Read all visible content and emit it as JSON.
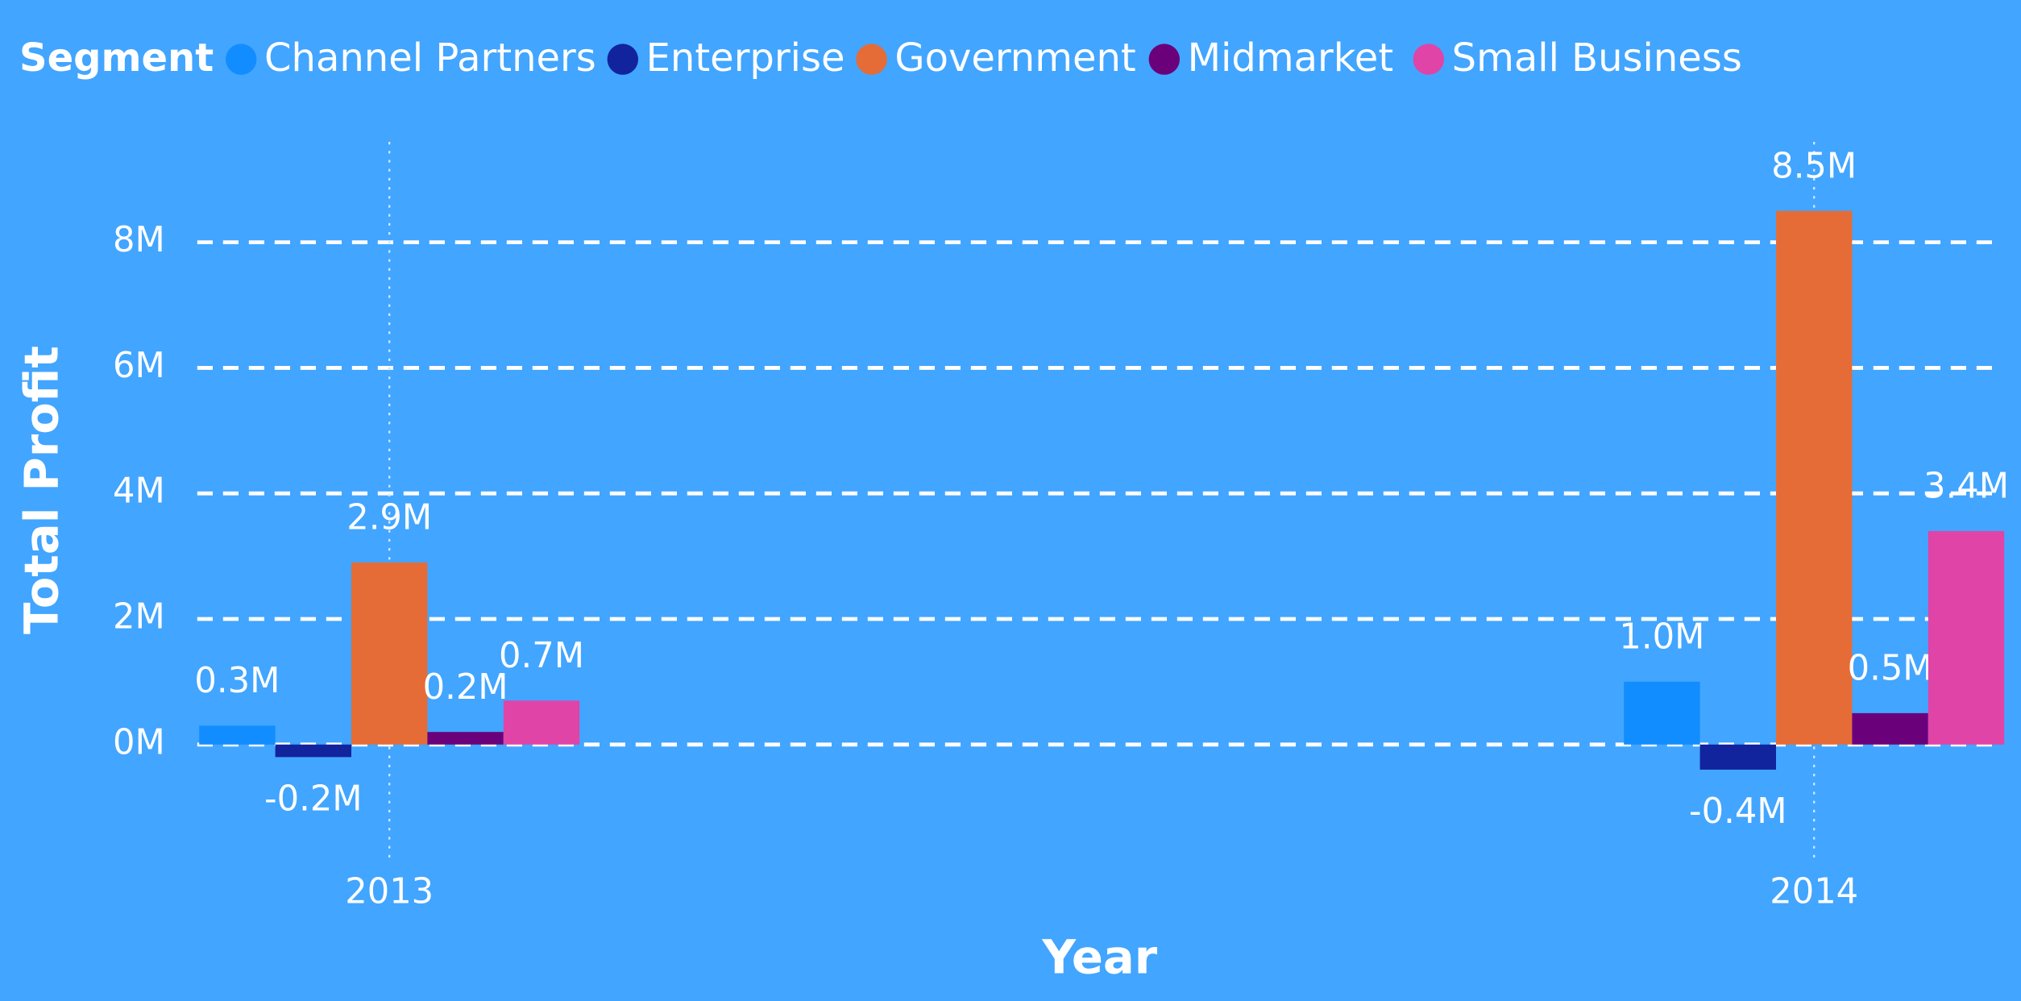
{
  "chart_data": {
    "type": "bar",
    "legend_title": "Segment",
    "x_label": "Year",
    "y_label": "Total Profit",
    "categories": [
      "2013",
      "2014"
    ],
    "series": [
      {
        "name": "Channel Partners",
        "color": "#118dff",
        "values": [
          0.3,
          1.0
        ],
        "value_labels": [
          "0.3M",
          "1.0M"
        ]
      },
      {
        "name": "Enterprise",
        "color": "#12239e",
        "values": [
          -0.2,
          -0.4
        ],
        "value_labels": [
          "-0.2M",
          "-0.4M"
        ]
      },
      {
        "name": "Government",
        "color": "#e66c37",
        "values": [
          2.9,
          8.5
        ],
        "value_labels": [
          "2.9M",
          "8.5M"
        ]
      },
      {
        "name": "Midmarket",
        "color": "#6b007b",
        "values": [
          0.2,
          0.5
        ],
        "value_labels": [
          "0.2M",
          "0.5M"
        ]
      },
      {
        "name": "Small Business",
        "color": "#e044a7",
        "values": [
          0.7,
          3.4
        ],
        "value_labels": [
          "0.7M",
          "3.4M"
        ]
      }
    ],
    "ylim": [
      -1.8,
      9.6
    ],
    "yticks": [
      {
        "value": 0,
        "label": "0M"
      },
      {
        "value": 2,
        "label": "2M"
      },
      {
        "value": 4,
        "label": "4M"
      },
      {
        "value": 6,
        "label": "6M"
      },
      {
        "value": 8,
        "label": "8M"
      }
    ],
    "grid": true,
    "legend": "top-left"
  }
}
